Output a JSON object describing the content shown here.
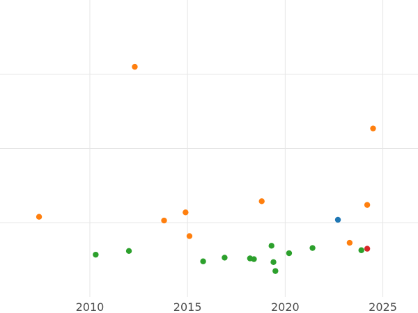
{
  "chart_data": {
    "type": "scatter",
    "title": "",
    "xlabel": "",
    "ylabel": "",
    "xlim": [
      2005.4,
      2026.8
    ],
    "ylim": [
      0,
      4.0
    ],
    "grid": true,
    "x_ticks": [
      2010,
      2015,
      2020,
      2025
    ],
    "x_tick_labels": [
      "2010",
      "2015",
      "2020",
      "2025"
    ],
    "y_gridlines": [
      1,
      2,
      3
    ],
    "series": [
      {
        "color": "#1f77b4",
        "points": [
          {
            "x": 2022.7,
            "y": 1.04
          }
        ]
      },
      {
        "color": "#ff7f0e",
        "points": [
          {
            "x": 2007.4,
            "y": 1.08
          },
          {
            "x": 2012.3,
            "y": 3.1
          },
          {
            "x": 2013.8,
            "y": 1.03
          },
          {
            "x": 2014.9,
            "y": 1.14
          },
          {
            "x": 2015.1,
            "y": 0.82
          },
          {
            "x": 2018.8,
            "y": 1.29
          },
          {
            "x": 2023.3,
            "y": 0.73
          },
          {
            "x": 2024.2,
            "y": 1.24
          },
          {
            "x": 2024.5,
            "y": 2.27
          }
        ]
      },
      {
        "color": "#2ca02c",
        "points": [
          {
            "x": 2010.3,
            "y": 0.57
          },
          {
            "x": 2012.0,
            "y": 0.62
          },
          {
            "x": 2015.8,
            "y": 0.48
          },
          {
            "x": 2016.9,
            "y": 0.53
          },
          {
            "x": 2018.2,
            "y": 0.52
          },
          {
            "x": 2018.4,
            "y": 0.51
          },
          {
            "x": 2019.3,
            "y": 0.69
          },
          {
            "x": 2019.4,
            "y": 0.47
          },
          {
            "x": 2019.5,
            "y": 0.35
          },
          {
            "x": 2020.2,
            "y": 0.59
          },
          {
            "x": 2021.4,
            "y": 0.66
          },
          {
            "x": 2023.9,
            "y": 0.63
          }
        ]
      },
      {
        "color": "#d62728",
        "points": [
          {
            "x": 2024.2,
            "y": 0.65
          }
        ]
      }
    ]
  }
}
